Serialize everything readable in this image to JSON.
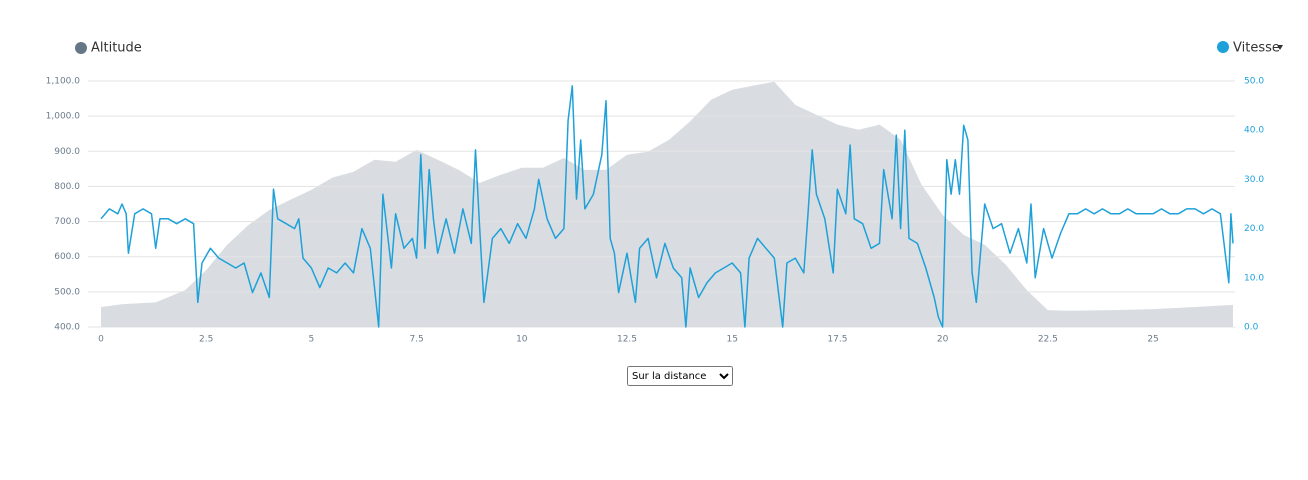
{
  "chart_data": {
    "type": "line",
    "xlim": [
      0,
      26.9
    ],
    "xticks": [
      0,
      2.5,
      5,
      7.5,
      10,
      12.5,
      15,
      17.5,
      20,
      22.5,
      25
    ],
    "ylim": [
      400,
      1100
    ],
    "yticks": [
      {
        "value": 400,
        "label": "400.0"
      },
      {
        "value": 500,
        "label": "500.0"
      },
      {
        "value": 600,
        "label": "600.0"
      },
      {
        "value": 700,
        "label": "700.0"
      },
      {
        "value": 800,
        "label": "800.0"
      },
      {
        "value": 900,
        "label": "900.0"
      },
      {
        "value": 1000,
        "label": "1,000.0"
      },
      {
        "value": 1100,
        "label": "1,100.0"
      }
    ],
    "y2lim": [
      0,
      50
    ],
    "y2ticks": [
      {
        "value": 0,
        "label": "0.0"
      },
      {
        "value": 10,
        "label": "10.0"
      },
      {
        "value": 20,
        "label": "20.0"
      },
      {
        "value": 30,
        "label": "30.0"
      },
      {
        "value": 40,
        "label": "40.0"
      },
      {
        "value": 50,
        "label": "50.0"
      }
    ],
    "grid": true,
    "series": [
      {
        "name": "Altitude",
        "type": "area",
        "color": "#d9dde2",
        "legend_color": "#657786",
        "x": [
          0,
          0.5,
          1.3,
          2,
          2.5,
          3,
          3.5,
          4,
          4.5,
          5,
          5.5,
          6,
          6.5,
          7,
          7.5,
          8,
          8.5,
          9,
          9.5,
          10,
          10.5,
          11,
          11.5,
          12,
          12.5,
          13,
          13.5,
          14,
          14.5,
          15,
          15.5,
          16,
          16.5,
          17,
          17.5,
          18,
          18.5,
          19,
          19.5,
          20,
          20.5,
          21,
          21.5,
          22,
          22.5,
          23,
          24,
          25,
          26,
          26.9
        ],
        "values": [
          457,
          465,
          470,
          505,
          562,
          634,
          690,
          733,
          762,
          790,
          825,
          842,
          876,
          870,
          904,
          876,
          847,
          810,
          833,
          853,
          853,
          881,
          847,
          847,
          890,
          899,
          933,
          985,
          1047,
          1075,
          1087,
          1098,
          1032,
          1004,
          976,
          961,
          976,
          933,
          805,
          719,
          662,
          634,
          577,
          505,
          448,
          446,
          448,
          451,
          457,
          463
        ]
      },
      {
        "name": "Vitesse",
        "type": "line",
        "axis": "y2",
        "color": "#1ea1d9",
        "x": [
          0,
          0.2,
          0.4,
          0.5,
          0.6,
          0.65,
          0.8,
          1.0,
          1.2,
          1.3,
          1.4,
          1.6,
          1.8,
          2.0,
          2.2,
          2.3,
          2.4,
          2.6,
          2.8,
          3.0,
          3.2,
          3.4,
          3.6,
          3.8,
          4.0,
          4.1,
          4.2,
          4.4,
          4.6,
          4.7,
          4.8,
          5.0,
          5.2,
          5.4,
          5.6,
          5.8,
          6.0,
          6.2,
          6.4,
          6.5,
          6.6,
          6.7,
          6.9,
          7.0,
          7.2,
          7.4,
          7.5,
          7.6,
          7.7,
          7.8,
          7.9,
          8.0,
          8.2,
          8.4,
          8.6,
          8.8,
          8.9,
          9.0,
          9.1,
          9.3,
          9.5,
          9.7,
          9.9,
          10.1,
          10.3,
          10.4,
          10.6,
          10.8,
          11.0,
          11.1,
          11.2,
          11.3,
          11.4,
          11.5,
          11.7,
          11.9,
          12.0,
          12.1,
          12.2,
          12.3,
          12.5,
          12.7,
          12.8,
          13.0,
          13.2,
          13.4,
          13.6,
          13.8,
          13.9,
          14.0,
          14.2,
          14.4,
          14.6,
          14.8,
          15.0,
          15.2,
          15.3,
          15.4,
          15.6,
          15.8,
          16.0,
          16.2,
          16.3,
          16.5,
          16.7,
          16.8,
          16.9,
          17.0,
          17.2,
          17.4,
          17.5,
          17.7,
          17.8,
          17.9,
          18.1,
          18.3,
          18.5,
          18.6,
          18.8,
          18.9,
          19.0,
          19.1,
          19.2,
          19.4,
          19.6,
          19.8,
          19.9,
          20.0,
          20.1,
          20.2,
          20.3,
          20.4,
          20.5,
          20.6,
          20.7,
          20.8,
          21.0,
          21.2,
          21.4,
          21.6,
          21.8,
          22.0,
          22.1,
          22.2,
          22.4,
          22.6,
          22.8,
          23.0,
          23.2,
          23.4,
          23.6,
          23.8,
          24.0,
          24.2,
          24.4,
          24.6,
          24.8,
          25.0,
          25.2,
          25.4,
          25.6,
          25.8,
          26.0,
          26.2,
          26.4,
          26.6,
          26.8,
          26.85,
          26.9
        ],
        "values": [
          22,
          24,
          23,
          25,
          23,
          15,
          23,
          24,
          23,
          16,
          22,
          22,
          21,
          22,
          21,
          5,
          13,
          16,
          14,
          13,
          12,
          13,
          7,
          11,
          6,
          28,
          22,
          21,
          20,
          22,
          14,
          12,
          8,
          12,
          11,
          13,
          11,
          20,
          16,
          8,
          0,
          27,
          12,
          23,
          16,
          18,
          14,
          35,
          16,
          32,
          22,
          15,
          22,
          15,
          24,
          17,
          36,
          20,
          5,
          18,
          20,
          17,
          21,
          18,
          24,
          30,
          22,
          18,
          20,
          42,
          49,
          26,
          38,
          24,
          27,
          35,
          46,
          18,
          15,
          7,
          15,
          5,
          16,
          18,
          10,
          17,
          12,
          10,
          0,
          12,
          6,
          9,
          11,
          12,
          13,
          11,
          0,
          14,
          18,
          16,
          14,
          0,
          13,
          14,
          11,
          23,
          36,
          27,
          22,
          11,
          28,
          23,
          37,
          22,
          21,
          16,
          17,
          32,
          22,
          39,
          20,
          40,
          18,
          17,
          12,
          6,
          2,
          0,
          34,
          27,
          34,
          27,
          41,
          38,
          11,
          5,
          25,
          20,
          21,
          15,
          20,
          13,
          25,
          10,
          20,
          14,
          19,
          23,
          23,
          24,
          23,
          24,
          23,
          23,
          24,
          23,
          23,
          23,
          24,
          23,
          23,
          24,
          24,
          23,
          24,
          23,
          9,
          23,
          17
        ]
      }
    ],
    "control": {
      "option": "Sur la distance"
    }
  }
}
